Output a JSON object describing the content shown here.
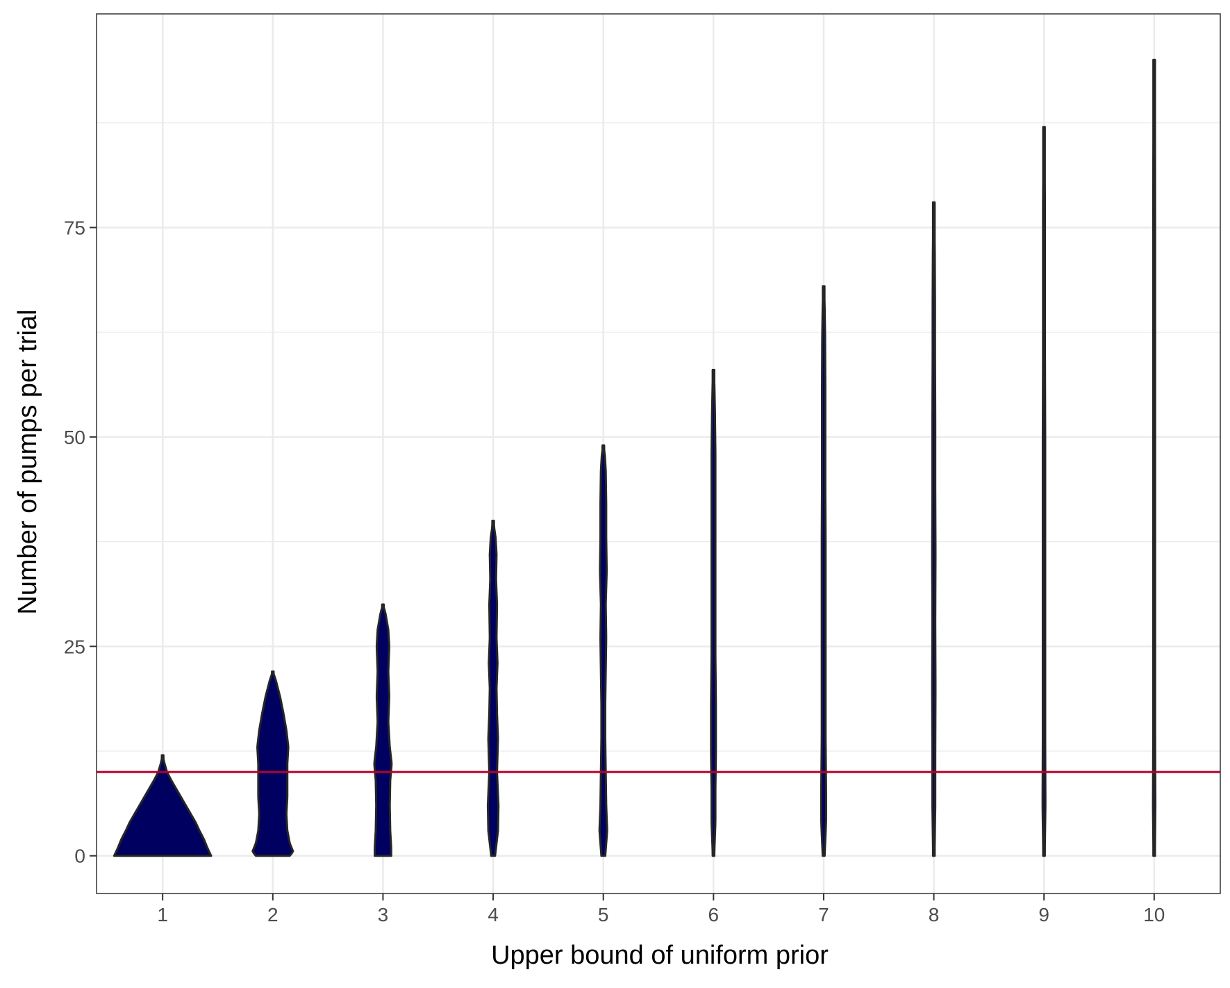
{
  "chart_data": {
    "type": "violin",
    "xlabel": "Upper bound of uniform prior",
    "ylabel": "Number of pumps per trial",
    "categories": [
      "1",
      "2",
      "3",
      "4",
      "5",
      "6",
      "7",
      "8",
      "9",
      "10"
    ],
    "y_ticks": [
      0,
      25,
      50,
      75
    ],
    "ylim": [
      -4.5,
      100.5
    ],
    "grid": true,
    "fill_color": "#000060",
    "outline_color": "#262626",
    "reference_line": {
      "y": 10,
      "color": "#b8002a"
    },
    "violins": [
      {
        "category": "1",
        "min": 0,
        "max": 12,
        "profile": [
          [
            0,
            1.0
          ],
          [
            1,
            0.92
          ],
          [
            2,
            0.85
          ],
          [
            3,
            0.76
          ],
          [
            4,
            0.68
          ],
          [
            5,
            0.58
          ],
          [
            6,
            0.48
          ],
          [
            7,
            0.38
          ],
          [
            8,
            0.28
          ],
          [
            9,
            0.18
          ],
          [
            10,
            0.09
          ],
          [
            11,
            0.04
          ],
          [
            12,
            0.0
          ]
        ]
      },
      {
        "category": "2",
        "min": 0,
        "max": 22,
        "profile": [
          [
            0,
            0.35
          ],
          [
            0.5,
            0.42
          ],
          [
            1.5,
            0.35
          ],
          [
            3,
            0.3
          ],
          [
            5,
            0.28
          ],
          [
            7,
            0.3
          ],
          [
            9,
            0.3
          ],
          [
            11,
            0.3
          ],
          [
            13,
            0.32
          ],
          [
            15,
            0.28
          ],
          [
            17,
            0.22
          ],
          [
            19,
            0.15
          ],
          [
            21,
            0.06
          ],
          [
            22,
            0.0
          ]
        ]
      },
      {
        "category": "3",
        "min": 0,
        "max": 30,
        "profile": [
          [
            0,
            0.17
          ],
          [
            1,
            0.17
          ],
          [
            3,
            0.15
          ],
          [
            6,
            0.14
          ],
          [
            9,
            0.15
          ],
          [
            11,
            0.18
          ],
          [
            13,
            0.14
          ],
          [
            16,
            0.11
          ],
          [
            19,
            0.13
          ],
          [
            22,
            0.11
          ],
          [
            25,
            0.13
          ],
          [
            27,
            0.11
          ],
          [
            29,
            0.05
          ],
          [
            30,
            0.0
          ]
        ]
      },
      {
        "category": "4",
        "min": 0,
        "max": 40,
        "profile": [
          [
            0,
            0.04
          ],
          [
            3,
            0.1
          ],
          [
            6,
            0.11
          ],
          [
            10,
            0.08
          ],
          [
            14,
            0.1
          ],
          [
            17,
            0.08
          ],
          [
            20,
            0.07
          ],
          [
            23,
            0.09
          ],
          [
            26,
            0.07
          ],
          [
            30,
            0.08
          ],
          [
            33,
            0.06
          ],
          [
            36,
            0.07
          ],
          [
            38,
            0.05
          ],
          [
            40,
            0.0
          ]
        ]
      },
      {
        "category": "5",
        "min": 0,
        "max": 49,
        "profile": [
          [
            0,
            0.04
          ],
          [
            3,
            0.08
          ],
          [
            6,
            0.06
          ],
          [
            10,
            0.05
          ],
          [
            14,
            0.04
          ],
          [
            18,
            0.04
          ],
          [
            22,
            0.05
          ],
          [
            26,
            0.06
          ],
          [
            30,
            0.05
          ],
          [
            34,
            0.07
          ],
          [
            38,
            0.06
          ],
          [
            42,
            0.06
          ],
          [
            46,
            0.05
          ],
          [
            48,
            0.03
          ],
          [
            49,
            0.0
          ]
        ]
      },
      {
        "category": "6",
        "min": 0,
        "max": 58,
        "profile": [
          [
            0,
            0.015
          ],
          [
            4,
            0.04
          ],
          [
            8,
            0.04
          ],
          [
            12,
            0.05
          ],
          [
            18,
            0.05
          ],
          [
            24,
            0.04
          ],
          [
            30,
            0.04
          ],
          [
            36,
            0.04
          ],
          [
            42,
            0.04
          ],
          [
            48,
            0.04
          ],
          [
            53,
            0.03
          ],
          [
            56,
            0.02
          ],
          [
            58,
            0.0
          ]
        ]
      },
      {
        "category": "7",
        "min": 0,
        "max": 68,
        "profile": [
          [
            0,
            0.02
          ],
          [
            4,
            0.05
          ],
          [
            8,
            0.05
          ],
          [
            14,
            0.04
          ],
          [
            20,
            0.04
          ],
          [
            26,
            0.04
          ],
          [
            32,
            0.04
          ],
          [
            38,
            0.04
          ],
          [
            44,
            0.035
          ],
          [
            50,
            0.035
          ],
          [
            56,
            0.035
          ],
          [
            62,
            0.03
          ],
          [
            66,
            0.02
          ],
          [
            68,
            0.0
          ]
        ]
      },
      {
        "category": "8",
        "min": 0,
        "max": 78,
        "profile": [
          [
            0,
            0.015
          ],
          [
            6,
            0.03
          ],
          [
            12,
            0.03
          ],
          [
            20,
            0.035
          ],
          [
            28,
            0.03
          ],
          [
            36,
            0.035
          ],
          [
            44,
            0.03
          ],
          [
            52,
            0.03
          ],
          [
            60,
            0.025
          ],
          [
            66,
            0.025
          ],
          [
            72,
            0.02
          ],
          [
            76,
            0.012
          ],
          [
            78,
            0.0
          ]
        ]
      },
      {
        "category": "9",
        "min": 0,
        "max": 87,
        "profile": [
          [
            0,
            0.015
          ],
          [
            6,
            0.03
          ],
          [
            14,
            0.025
          ],
          [
            22,
            0.025
          ],
          [
            30,
            0.025
          ],
          [
            40,
            0.025
          ],
          [
            50,
            0.025
          ],
          [
            60,
            0.02
          ],
          [
            70,
            0.02
          ],
          [
            78,
            0.02
          ],
          [
            84,
            0.012
          ],
          [
            87,
            0.0
          ]
        ]
      },
      {
        "category": "10",
        "min": 0,
        "max": 95,
        "profile": [
          [
            0,
            0.015
          ],
          [
            6,
            0.025
          ],
          [
            14,
            0.02
          ],
          [
            24,
            0.02
          ],
          [
            34,
            0.02
          ],
          [
            44,
            0.02
          ],
          [
            54,
            0.02
          ],
          [
            64,
            0.02
          ],
          [
            74,
            0.02
          ],
          [
            84,
            0.018
          ],
          [
            90,
            0.012
          ],
          [
            95,
            0.0
          ]
        ]
      }
    ]
  }
}
